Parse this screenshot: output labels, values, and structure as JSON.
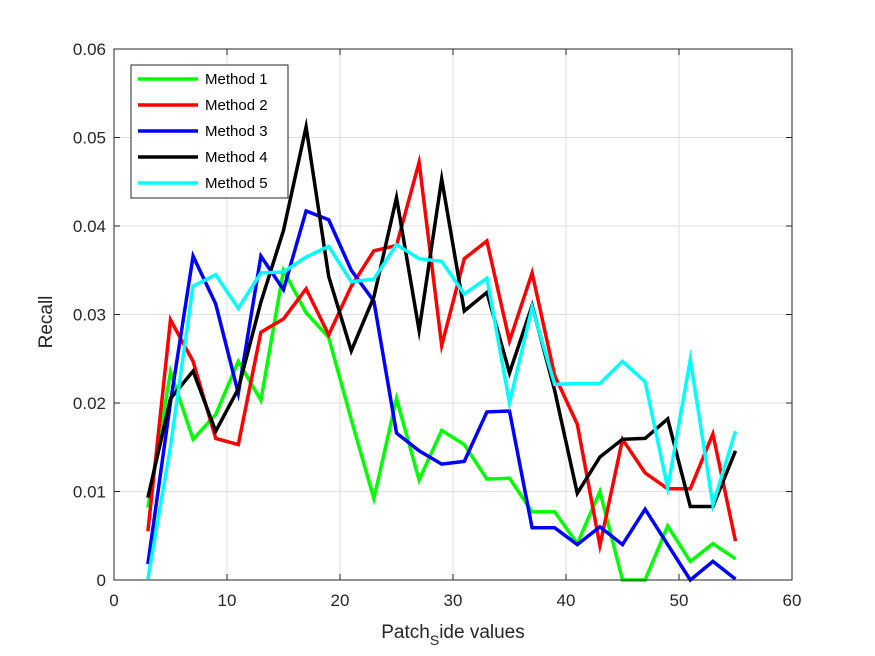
{
  "chart_data": {
    "type": "line",
    "title": "",
    "xlabel_main": "Patch",
    "xlabel_sub": "S",
    "xlabel_rest": "ide values",
    "ylabel": "Recall",
    "xlim": [
      0,
      60
    ],
    "ylim": [
      0,
      0.06
    ],
    "xticks": [
      "0",
      "10",
      "20",
      "30",
      "40",
      "50",
      "60"
    ],
    "yticks": [
      "0",
      "0.01",
      "0.02",
      "0.03",
      "0.04",
      "0.05",
      "0.06"
    ],
    "grid": true,
    "legend_position": "top-left",
    "x": [
      3,
      5,
      7,
      9,
      11,
      13,
      15,
      17,
      19,
      21,
      23,
      25,
      27,
      29,
      31,
      33,
      35,
      37,
      39,
      41,
      43,
      45,
      47,
      49,
      51,
      53,
      55
    ],
    "series": [
      {
        "name": "Method 1",
        "color": "#00ff00",
        "values": [
          0.0082,
          0.0235,
          0.0159,
          0.0187,
          0.0247,
          0.0203,
          0.035,
          0.0302,
          0.0274,
          0.0181,
          0.0092,
          0.0205,
          0.0113,
          0.0169,
          0.0153,
          0.0114,
          0.0115,
          0.0077,
          0.0077,
          0.0041,
          0.01,
          0.0,
          0.0,
          0.0061,
          0.0021,
          0.0041,
          0.0024
        ]
      },
      {
        "name": "Method 2",
        "color": "#ff0000",
        "values": [
          0.0055,
          0.0294,
          0.0247,
          0.016,
          0.0153,
          0.028,
          0.0295,
          0.0329,
          0.0277,
          0.0332,
          0.0372,
          0.0378,
          0.0472,
          0.0265,
          0.0363,
          0.0383,
          0.027,
          0.0347,
          0.0231,
          0.0176,
          0.0039,
          0.0159,
          0.0121,
          0.0103,
          0.0103,
          0.0165,
          0.0044
        ]
      },
      {
        "name": "Method 3",
        "color": "#0000ff",
        "values": [
          0.0018,
          0.0201,
          0.0366,
          0.0312,
          0.0211,
          0.0366,
          0.0328,
          0.0417,
          0.0407,
          0.035,
          0.0315,
          0.0166,
          0.0146,
          0.0131,
          0.0134,
          0.019,
          0.0191,
          0.0059,
          0.0059,
          0.004,
          0.006,
          0.004,
          0.008,
          0.004,
          0.0,
          0.0021,
          0.0001
        ]
      },
      {
        "name": "Method 4",
        "color": "#000000",
        "values": [
          0.0093,
          0.0205,
          0.0236,
          0.0168,
          0.0216,
          0.0314,
          0.0395,
          0.0512,
          0.0343,
          0.0259,
          0.032,
          0.0432,
          0.0282,
          0.0453,
          0.0304,
          0.0325,
          0.0234,
          0.031,
          0.0214,
          0.0098,
          0.0139,
          0.0159,
          0.016,
          0.0182,
          0.0083,
          0.0083,
          0.0146
        ]
      },
      {
        "name": "Method 5",
        "color": "#00ffff",
        "values": [
          0.0001,
          0.0151,
          0.0332,
          0.0345,
          0.0307,
          0.0347,
          0.0348,
          0.0365,
          0.0377,
          0.0337,
          0.034,
          0.0379,
          0.0363,
          0.036,
          0.0323,
          0.0341,
          0.02,
          0.0308,
          0.0221,
          0.0222,
          0.0222,
          0.0247,
          0.0224,
          0.0104,
          0.0249,
          0.0085,
          0.0168
        ]
      }
    ]
  }
}
